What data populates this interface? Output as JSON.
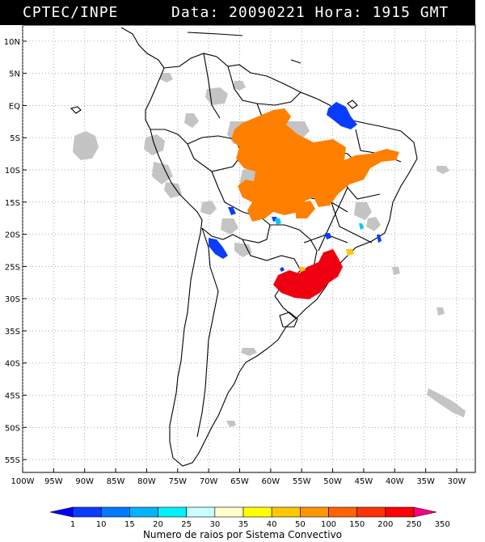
{
  "header": {
    "source": "CPTEC/INPE",
    "datetime": "Data: 20090221 Hora: 1915 GMT"
  },
  "map": {
    "lat_ticks": [
      "10N",
      "5N",
      "EQ",
      "5S",
      "10S",
      "15S",
      "20S",
      "25S",
      "30S",
      "35S",
      "40S",
      "45S",
      "50S",
      "55S"
    ],
    "lon_ticks": [
      "100W",
      "95W",
      "90W",
      "85W",
      "80W",
      "75W",
      "70W",
      "65W",
      "60W",
      "55W",
      "50W",
      "45W",
      "40W",
      "35W",
      "30W"
    ],
    "colors": {
      "cloud": "#c4c4c4",
      "orange": "#ff7f00",
      "red": "#ee0010",
      "blue": "#0a3cff",
      "cyan": "#00c8f0",
      "yellow": "#ffc800"
    }
  },
  "colorbar": {
    "labels": [
      "1",
      "10",
      "15",
      "20",
      "25",
      "30",
      "35",
      "40",
      "50",
      "100",
      "150",
      "200",
      "250",
      "350"
    ],
    "colors": [
      "#0000ff",
      "#0a3cff",
      "#0078ff",
      "#00b4ff",
      "#00f0ff",
      "#c8ffff",
      "#ffffc8",
      "#ffff00",
      "#ffc800",
      "#ff9600",
      "#ff6400",
      "#ff3200",
      "#ff0000",
      "#ff0080"
    ],
    "title": "Numero de raios por Sistema Convectivo"
  }
}
